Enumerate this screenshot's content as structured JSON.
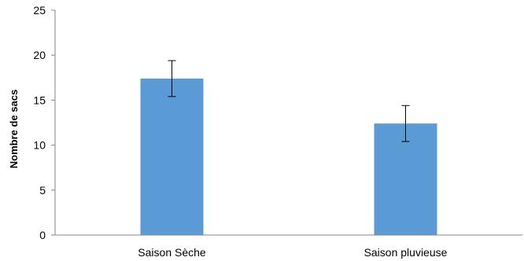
{
  "chart_data": {
    "type": "bar",
    "title": "",
    "xlabel": "",
    "ylabel": "Nombre de sacs",
    "categories": [
      "Saison Sèche",
      "Saison pluvieuse"
    ],
    "values": [
      17.4,
      12.4
    ],
    "error_low": [
      15.4,
      10.4
    ],
    "error_high": [
      19.4,
      14.4
    ],
    "ylim": [
      0,
      25
    ],
    "yticks": [
      "0",
      "5",
      "10",
      "15",
      "20",
      "25"
    ],
    "ytick_values": [
      0,
      5,
      10,
      15,
      20,
      25
    ],
    "grid": false,
    "bar_color": "#5b9bd5",
    "axis_color": "#868686",
    "error_color": "#000000"
  }
}
